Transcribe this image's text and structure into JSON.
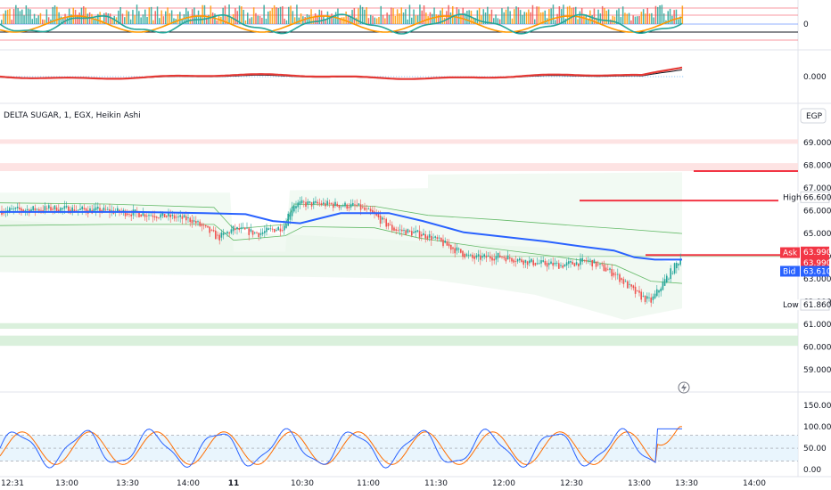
{
  "header": {
    "symbol_title": "DELTA SUGAR, 1, EGX, Heikin Ashi",
    "currency": "EGP"
  },
  "colors": {
    "up": "#26a69a",
    "down": "#ef5350",
    "vwap": "#2962ff",
    "stoch_k": "#2962ff",
    "stoch_d": "#ff6d00",
    "macd": "#e53935",
    "accent_red": "#f23645",
    "band_fill": "#e8f5e9",
    "resistance_fill": "#fde0e0",
    "support_fill": "#d6eed8"
  },
  "chart_data": [
    {
      "type": "line",
      "pane": "oscillator-top",
      "y_ticks": [
        "0"
      ],
      "series": []
    },
    {
      "type": "line",
      "pane": "macd",
      "y_ticks": [
        "0.000"
      ],
      "series": []
    },
    {
      "type": "candlestick",
      "pane": "main",
      "y_ticks": [
        "69.000",
        "68.000",
        "67.000",
        "66.000",
        "65.000",
        "64.000",
        "63.000",
        "62.000",
        "61.000",
        "60.000",
        "59.000"
      ],
      "x_ticks": [
        "12:31",
        "13:00",
        "13:30",
        "14:00",
        "11",
        "10:30",
        "11:00",
        "11:30",
        "12:00",
        "12:30",
        "13:00",
        "13:30",
        "14:00"
      ],
      "ylim": [
        58.8,
        69.4
      ],
      "price_labels": [
        {
          "label": "High",
          "value": "66.600",
          "price": 66.6
        },
        {
          "label": "Ask",
          "value": "64.000",
          "price": 64.0
        },
        {
          "label": "",
          "value": "63.990",
          "price": 63.99
        },
        {
          "label": "",
          "value": "63.990",
          "price": 63.99
        },
        {
          "label": "Bid",
          "value": "63.610",
          "price": 63.61
        },
        {
          "label": "Low",
          "value": "61.860",
          "price": 61.86
        }
      ],
      "horizontal_lines": [
        67.75,
        66.45,
        64.05
      ],
      "zones": [
        {
          "kind": "resistance",
          "from": 68.95,
          "to": 69.15
        },
        {
          "kind": "resistance",
          "from": 67.75,
          "to": 68.1
        },
        {
          "kind": "support",
          "from": 60.8,
          "to": 61.05
        },
        {
          "kind": "support",
          "from": 60.05,
          "to": 60.5
        }
      ],
      "guide_line": 63.99,
      "vwap_path": [
        [
          0,
          65.95
        ],
        [
          0.1,
          65.95
        ],
        [
          0.2,
          65.95
        ],
        [
          0.3,
          65.9
        ],
        [
          0.36,
          65.85
        ],
        [
          0.4,
          65.55
        ],
        [
          0.44,
          65.45
        ],
        [
          0.5,
          65.9
        ],
        [
          0.57,
          65.9
        ],
        [
          0.62,
          65.55
        ],
        [
          0.68,
          65.05
        ],
        [
          0.74,
          64.85
        ],
        [
          0.8,
          64.65
        ],
        [
          0.86,
          64.4
        ],
        [
          0.9,
          64.25
        ],
        [
          0.93,
          63.95
        ],
        [
          0.96,
          63.85
        ],
        [
          1,
          63.85
        ]
      ]
    },
    {
      "type": "line",
      "pane": "stochastic",
      "y_ticks": [
        "150.00",
        "100.00",
        "50.00",
        "0.00"
      ],
      "ylim": [
        -10,
        160
      ],
      "bands": [
        80,
        50,
        20
      ]
    }
  ]
}
